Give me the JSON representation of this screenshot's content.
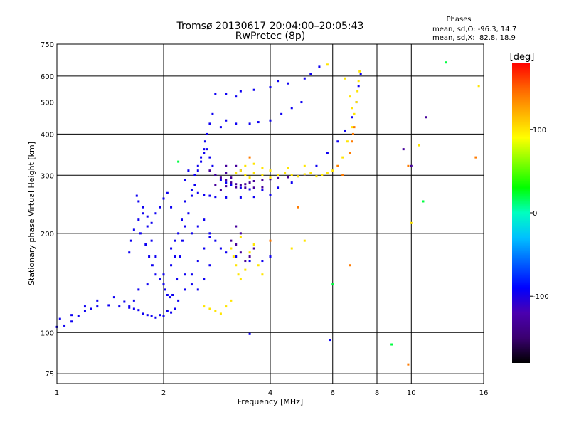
{
  "chart_data": {
    "type": "scatter",
    "title": "Tromsø 20130617 20:04:00–20:05:43",
    "subtitle": "RwPretec (8p)",
    "xlabel": "Frequency [MHz]",
    "ylabel": "Stationary phase Virtual Height [km]",
    "x_scale": "log",
    "y_scale": "log",
    "xlim": [
      1,
      16
    ],
    "ylim": [
      70,
      750
    ],
    "x_ticks": [
      1,
      2,
      4,
      6,
      8,
      10,
      16
    ],
    "y_ticks": [
      75,
      100,
      200,
      300,
      400,
      500,
      600,
      750
    ],
    "grid": true,
    "phase_info": {
      "heading": "Phases",
      "line_o": "mean, sd,O: -96.3, 14.7",
      "line_x": "mean, sd,X:  82.8, 18.9"
    },
    "colorbar": {
      "label": "[deg]",
      "range": [
        -180,
        180
      ],
      "ticks": [
        100,
        0,
        -100
      ],
      "colors": [
        "#000000",
        "#3a0070",
        "#4b00b0",
        "#0000ff",
        "#0060ff",
        "#00c0ff",
        "#00ffc0",
        "#00ff00",
        "#80ff00",
        "#ffff00",
        "#ffb000",
        "#ff6000",
        "#ff0000"
      ]
    },
    "series": [
      {
        "name": "",
        "phase": -95,
        "points": [
          [
            1.0,
            104
          ],
          [
            1.05,
            105
          ],
          [
            1.1,
            108
          ],
          [
            1.15,
            112
          ],
          [
            1.2,
            116
          ],
          [
            1.25,
            118
          ],
          [
            1.3,
            120
          ],
          [
            1.4,
            121
          ],
          [
            1.5,
            120
          ],
          [
            1.6,
            119
          ],
          [
            1.7,
            117
          ],
          [
            1.8,
            113
          ],
          [
            1.9,
            111
          ],
          [
            2.0,
            112
          ],
          [
            2.1,
            115
          ],
          [
            2.2,
            125
          ],
          [
            2.3,
            135
          ],
          [
            2.4,
            150
          ],
          [
            2.5,
            165
          ],
          [
            2.6,
            180
          ],
          [
            2.7,
            195
          ],
          [
            1.02,
            110
          ],
          [
            1.1,
            113
          ],
          [
            1.2,
            120
          ],
          [
            1.3,
            125
          ],
          [
            1.45,
            128
          ],
          [
            1.55,
            124
          ],
          [
            1.65,
            118
          ],
          [
            1.75,
            114
          ],
          [
            1.85,
            112
          ],
          [
            1.95,
            113
          ],
          [
            2.05,
            116
          ],
          [
            2.15,
            118
          ],
          [
            1.6,
            175
          ],
          [
            1.62,
            190
          ],
          [
            1.65,
            205
          ],
          [
            1.7,
            220
          ],
          [
            1.75,
            240
          ],
          [
            1.8,
            225
          ],
          [
            1.85,
            215
          ],
          [
            1.9,
            230
          ],
          [
            1.95,
            240
          ],
          [
            2.0,
            255
          ],
          [
            2.05,
            265
          ],
          [
            2.1,
            240
          ],
          [
            1.72,
            200
          ],
          [
            1.78,
            185
          ],
          [
            1.82,
            170
          ],
          [
            1.86,
            160
          ],
          [
            1.9,
            150
          ],
          [
            1.95,
            145
          ],
          [
            2.0,
            140
          ],
          [
            2.02,
            135
          ],
          [
            2.05,
            130
          ],
          [
            2.08,
            128
          ],
          [
            2.12,
            130
          ],
          [
            2.18,
            145
          ],
          [
            2.22,
            170
          ],
          [
            2.26,
            190
          ],
          [
            2.3,
            210
          ],
          [
            2.35,
            230
          ],
          [
            2.4,
            260
          ],
          [
            2.45,
            280
          ],
          [
            2.5,
            310
          ],
          [
            2.55,
            330
          ],
          [
            2.6,
            350
          ],
          [
            2.65,
            360
          ],
          [
            2.7,
            340
          ],
          [
            2.75,
            320
          ],
          [
            2.8,
            300
          ],
          [
            2.9,
            290
          ],
          [
            3.0,
            285
          ],
          [
            3.1,
            280
          ],
          [
            3.3,
            275
          ],
          [
            3.5,
            272
          ],
          [
            3.8,
            270
          ],
          [
            4.2,
            275
          ],
          [
            4.6,
            285
          ],
          [
            5.0,
            300
          ],
          [
            5.4,
            320
          ],
          [
            5.8,
            350
          ],
          [
            6.2,
            380
          ],
          [
            6.5,
            410
          ],
          [
            6.8,
            450
          ],
          [
            7.0,
            500
          ],
          [
            7.1,
            560
          ],
          [
            7.2,
            610
          ],
          [
            2.4,
            270
          ],
          [
            2.5,
            265
          ],
          [
            2.6,
            262
          ],
          [
            2.7,
            260
          ],
          [
            2.8,
            258
          ],
          [
            3.0,
            257
          ],
          [
            3.3,
            257
          ],
          [
            3.6,
            258
          ],
          [
            4.0,
            262
          ],
          [
            2.45,
            300
          ],
          [
            2.5,
            320
          ],
          [
            2.55,
            340
          ],
          [
            2.6,
            360
          ],
          [
            2.62,
            380
          ],
          [
            2.65,
            400
          ],
          [
            2.7,
            430
          ],
          [
            2.75,
            460
          ],
          [
            2.9,
            420
          ],
          [
            3.0,
            440
          ],
          [
            3.2,
            430
          ],
          [
            3.5,
            430
          ],
          [
            3.7,
            435
          ],
          [
            4.0,
            440
          ],
          [
            4.3,
            460
          ],
          [
            4.6,
            480
          ],
          [
            4.9,
            500
          ],
          [
            3.0,
            530
          ],
          [
            3.3,
            540
          ],
          [
            3.6,
            545
          ],
          [
            4.0,
            555
          ],
          [
            4.5,
            570
          ],
          [
            5.0,
            590
          ],
          [
            5.5,
            640
          ],
          [
            5.2,
            610
          ],
          [
            2.8,
            530
          ],
          [
            3.2,
            520
          ],
          [
            4.2,
            580
          ],
          [
            2.4,
            200
          ],
          [
            2.5,
            210
          ],
          [
            2.6,
            220
          ],
          [
            2.7,
            200
          ],
          [
            2.8,
            190
          ],
          [
            2.9,
            180
          ],
          [
            3.0,
            175
          ],
          [
            3.2,
            170
          ],
          [
            3.5,
            165
          ],
          [
            3.8,
            165
          ],
          [
            4.0,
            170
          ],
          [
            2.3,
            150
          ],
          [
            2.4,
            140
          ],
          [
            2.5,
            135
          ],
          [
            2.6,
            145
          ],
          [
            2.7,
            160
          ],
          [
            2.0,
            150
          ],
          [
            2.1,
            160
          ],
          [
            2.15,
            170
          ],
          [
            1.8,
            140
          ],
          [
            1.7,
            135
          ],
          [
            1.65,
            125
          ],
          [
            1.6,
            120
          ],
          [
            2.3,
            290
          ],
          [
            2.35,
            310
          ],
          [
            2.3,
            250
          ],
          [
            2.25,
            220
          ],
          [
            2.2,
            200
          ],
          [
            2.15,
            190
          ],
          [
            2.1,
            180
          ],
          [
            1.9,
            170
          ],
          [
            1.85,
            190
          ],
          [
            1.8,
            210
          ],
          [
            1.75,
            230
          ],
          [
            1.7,
            250
          ],
          [
            1.68,
            260
          ],
          [
            5.9,
            95
          ],
          [
            3.5,
            99
          ]
        ]
      },
      {
        "name": "",
        "phase": -130,
        "points": [
          [
            2.7,
            310
          ],
          [
            2.8,
            300
          ],
          [
            2.9,
            295
          ],
          [
            3.0,
            290
          ],
          [
            3.1,
            285
          ],
          [
            3.2,
            282
          ],
          [
            3.3,
            280
          ],
          [
            3.4,
            282
          ],
          [
            3.5,
            285
          ],
          [
            3.6,
            288
          ],
          [
            3.8,
            290
          ],
          [
            4.0,
            292
          ],
          [
            4.2,
            294
          ],
          [
            4.5,
            296
          ],
          [
            4.8,
            298
          ],
          [
            2.8,
            280
          ],
          [
            3.0,
            278
          ],
          [
            3.2,
            276
          ],
          [
            3.4,
            275
          ],
          [
            3.6,
            275
          ],
          [
            3.8,
            276
          ],
          [
            3.2,
            320
          ],
          [
            3.3,
            310
          ],
          [
            3.0,
            305
          ],
          [
            3.1,
            295
          ],
          [
            2.9,
            270
          ],
          [
            3.0,
            320
          ],
          [
            3.1,
            190
          ],
          [
            3.2,
            185
          ],
          [
            3.3,
            175
          ],
          [
            3.4,
            165
          ],
          [
            3.5,
            170
          ],
          [
            3.6,
            180
          ],
          [
            3.3,
            200
          ],
          [
            3.2,
            210
          ],
          [
            10.0,
            320
          ],
          [
            11.0,
            450
          ],
          [
            9.5,
            360
          ]
        ]
      },
      {
        "name": "",
        "phase": 100,
        "points": [
          [
            3.2,
            305
          ],
          [
            3.3,
            310
          ],
          [
            3.4,
            300
          ],
          [
            3.5,
            295
          ],
          [
            3.6,
            305
          ],
          [
            3.8,
            300
          ],
          [
            4.0,
            295
          ],
          [
            4.2,
            300
          ],
          [
            4.4,
            305
          ],
          [
            4.6,
            300
          ],
          [
            4.8,
            298
          ],
          [
            5.0,
            302
          ],
          [
            5.2,
            305
          ],
          [
            5.4,
            298
          ],
          [
            5.6,
            300
          ],
          [
            5.8,
            305
          ],
          [
            6.0,
            310
          ],
          [
            6.2,
            320
          ],
          [
            6.4,
            340
          ],
          [
            6.6,
            380
          ],
          [
            6.8,
            420
          ],
          [
            6.9,
            460
          ],
          [
            7.0,
            500
          ],
          [
            7.05,
            540
          ],
          [
            7.1,
            580
          ],
          [
            7.15,
            620
          ],
          [
            3.4,
            320
          ],
          [
            3.6,
            325
          ],
          [
            3.8,
            315
          ],
          [
            4.0,
            310
          ],
          [
            4.5,
            315
          ],
          [
            5.0,
            320
          ],
          [
            3.1,
            180
          ],
          [
            3.15,
            170
          ],
          [
            3.2,
            160
          ],
          [
            3.25,
            150
          ],
          [
            3.3,
            145
          ],
          [
            3.4,
            155
          ],
          [
            3.5,
            175
          ],
          [
            3.6,
            185
          ],
          [
            3.7,
            160
          ],
          [
            3.8,
            150
          ],
          [
            3.3,
            195
          ],
          [
            2.6,
            120
          ],
          [
            2.7,
            118
          ],
          [
            2.8,
            116
          ],
          [
            2.9,
            114
          ],
          [
            3.0,
            120
          ],
          [
            3.1,
            125
          ],
          [
            4.6,
            180
          ],
          [
            5.0,
            190
          ],
          [
            6.5,
            590
          ],
          [
            6.7,
            520
          ],
          [
            6.8,
            480
          ],
          [
            5.8,
            650
          ],
          [
            15.5,
            560
          ],
          [
            10.5,
            370
          ],
          [
            10.0,
            215
          ]
        ]
      },
      {
        "name": "",
        "phase": 140,
        "points": [
          [
            6.7,
            350
          ],
          [
            6.8,
            380
          ],
          [
            6.9,
            420
          ],
          [
            6.85,
            400
          ],
          [
            6.2,
            320
          ],
          [
            4.8,
            240
          ],
          [
            3.5,
            340
          ],
          [
            6.4,
            300
          ],
          [
            4.0,
            190
          ],
          [
            9.8,
            80
          ],
          [
            6.7,
            160
          ],
          [
            15.2,
            340
          ],
          [
            9.8,
            320
          ]
        ]
      },
      {
        "name": "",
        "phase": 20,
        "points": [
          [
            8.8,
            92
          ],
          [
            10.8,
            250
          ],
          [
            12.5,
            660
          ],
          [
            6.0,
            140
          ],
          [
            2.2,
            330
          ]
        ]
      }
    ]
  }
}
